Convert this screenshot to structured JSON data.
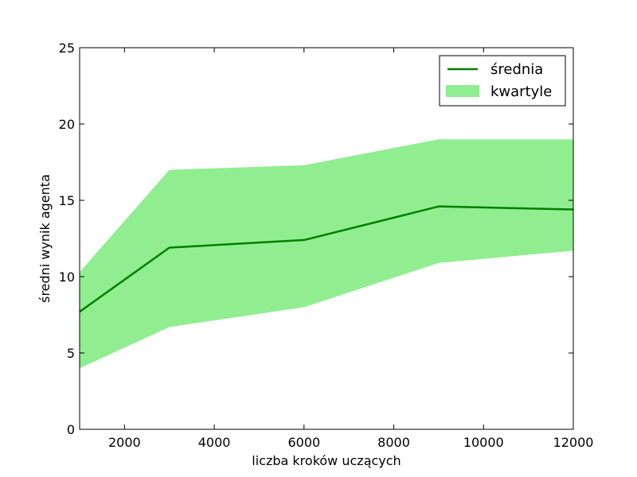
{
  "chart_data": {
    "type": "area",
    "title": "",
    "xlabel": "liczba kroków uczących",
    "ylabel": "średni wynik agenta",
    "xlim": [
      1000,
      12000
    ],
    "ylim": [
      0,
      25
    ],
    "xticks": [
      2000,
      4000,
      6000,
      8000,
      10000,
      12000
    ],
    "yticks": [
      0,
      5,
      10,
      15,
      20,
      25
    ],
    "x": [
      1000,
      3000,
      6000,
      9000,
      12000
    ],
    "series": [
      {
        "name": "średnia",
        "kind": "line",
        "color": "#008000",
        "values": [
          7.7,
          11.9,
          12.4,
          14.6,
          14.4
        ]
      },
      {
        "name": "kwartyle",
        "kind": "band",
        "color": "#90ee90",
        "lower": [
          4.0,
          6.7,
          8.0,
          10.9,
          11.7
        ],
        "upper": [
          10.3,
          17.0,
          17.3,
          19.0,
          19.0
        ]
      }
    ],
    "legend": {
      "placement": "top-right",
      "entries": [
        "średnia",
        "kwartyle"
      ]
    },
    "grid": false
  }
}
